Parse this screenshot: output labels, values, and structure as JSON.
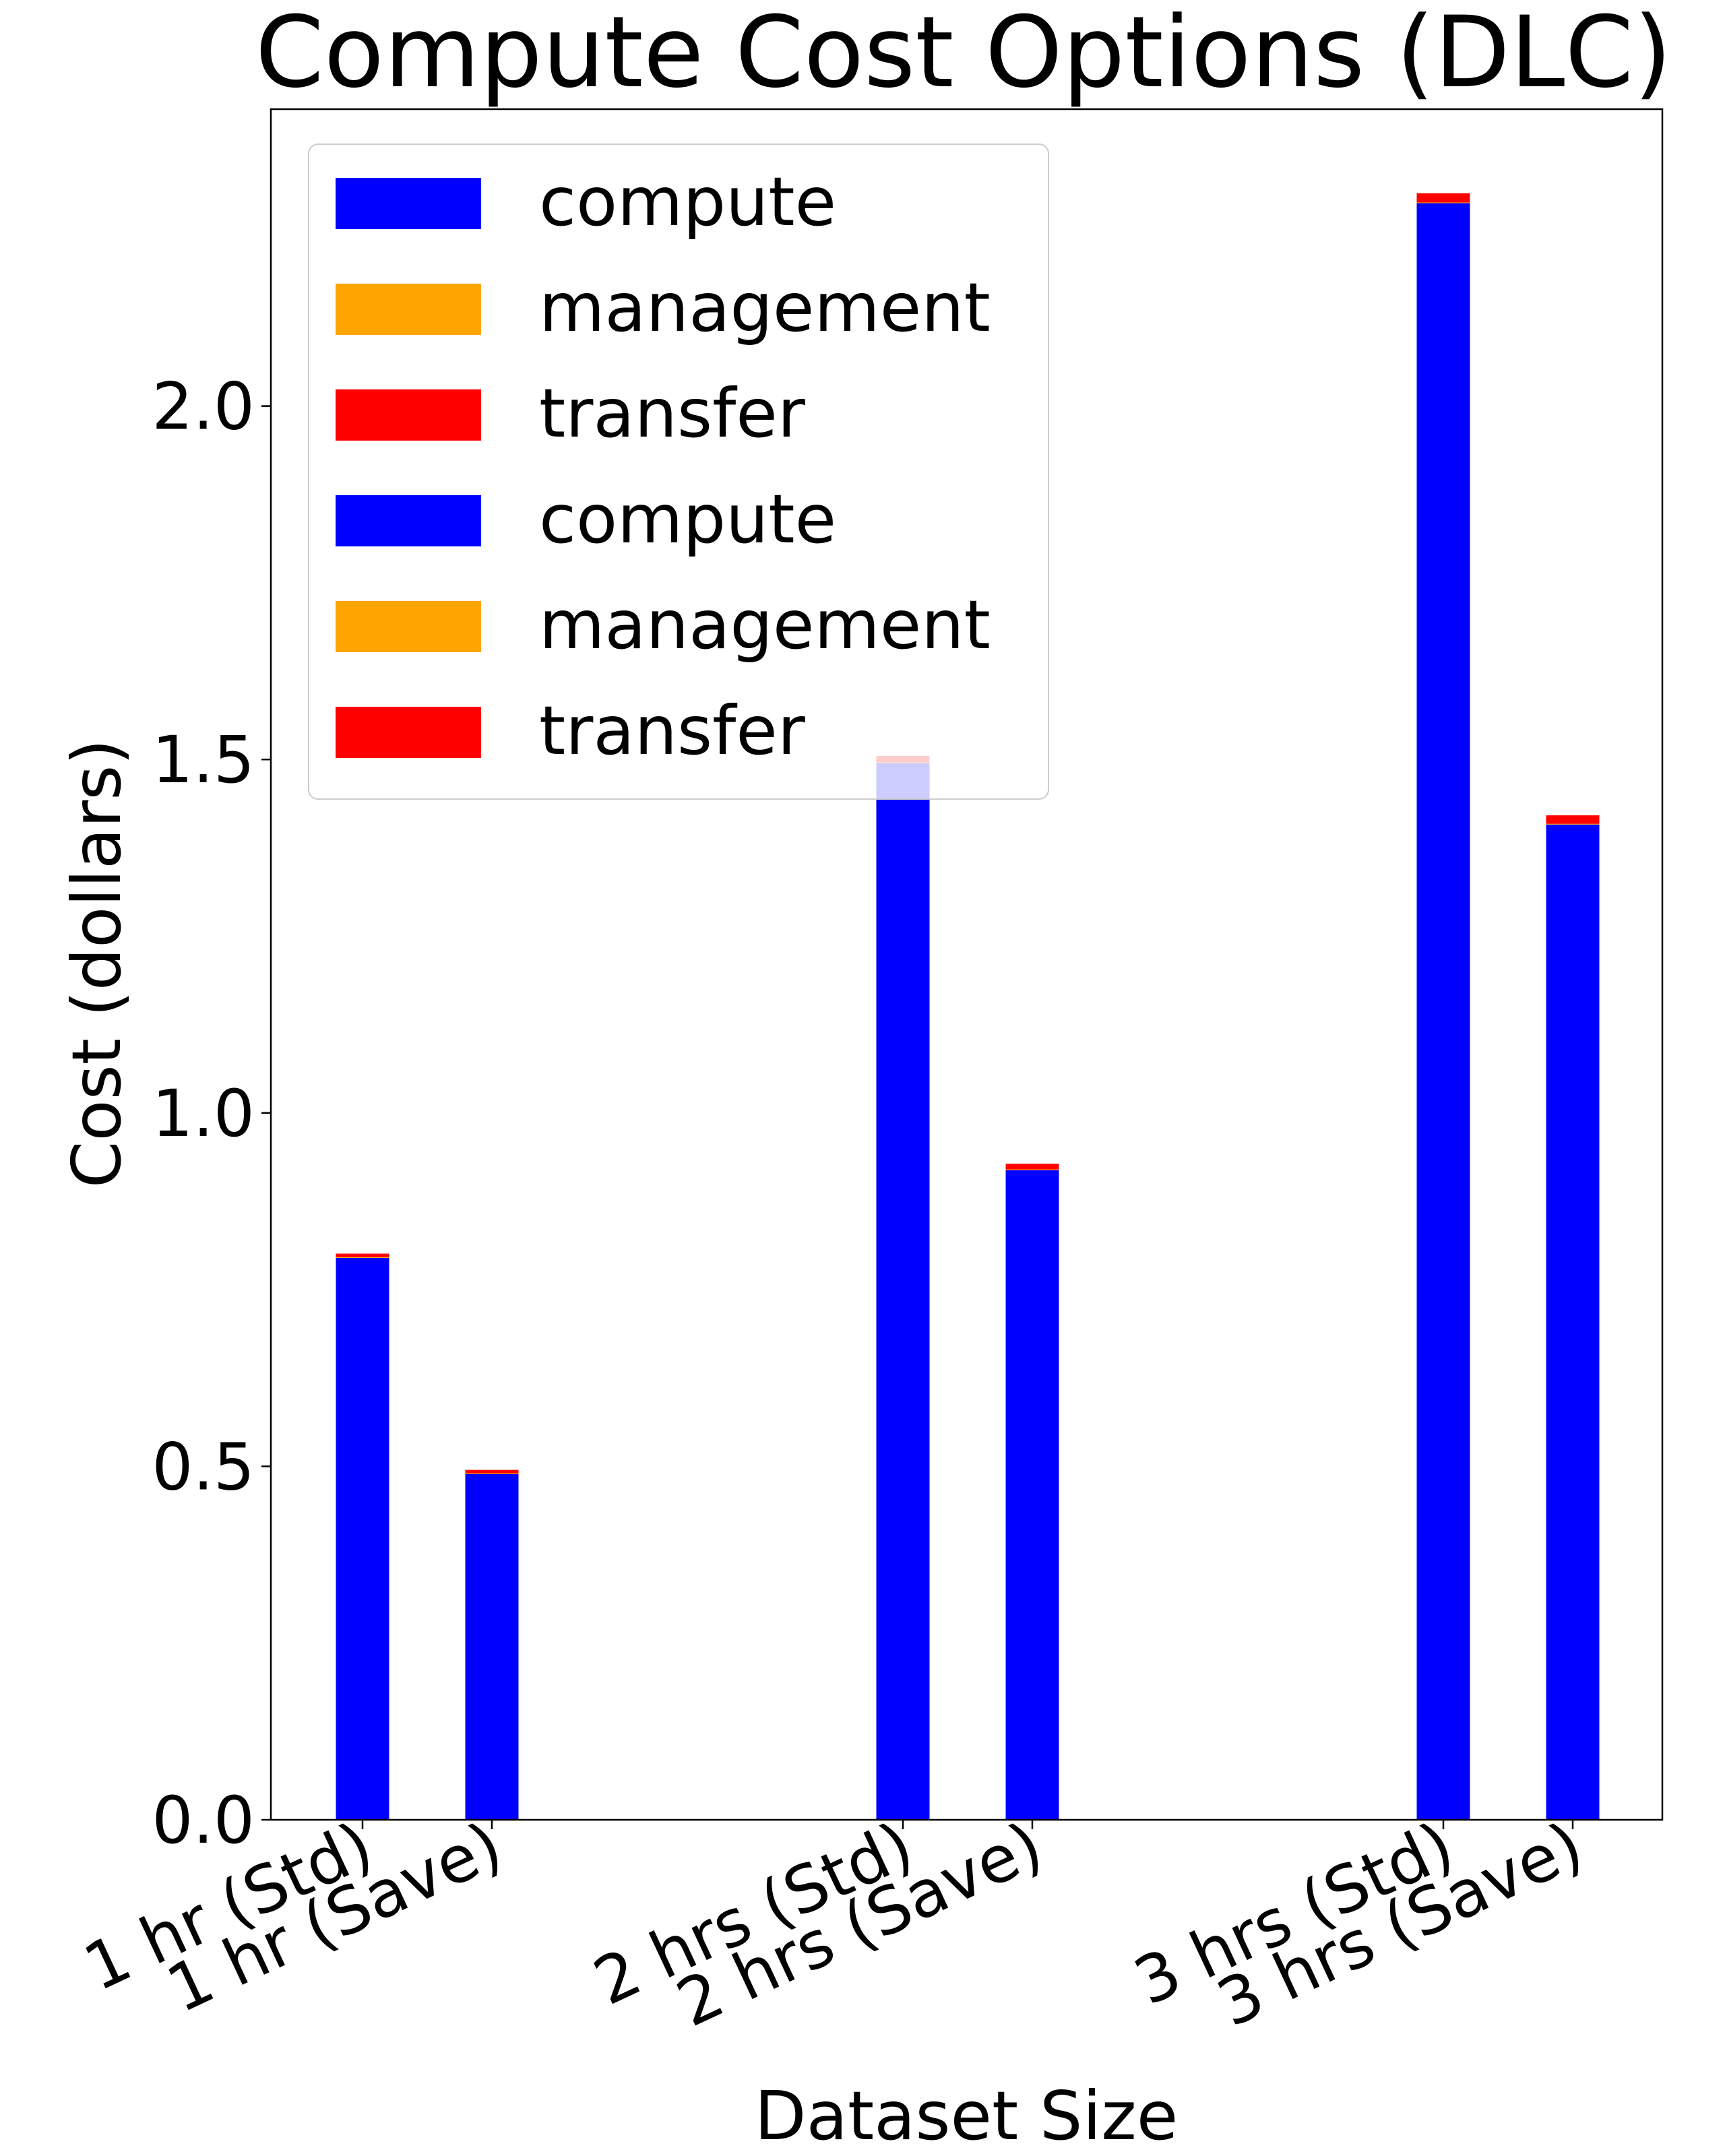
{
  "chart_data": {
    "type": "bar",
    "stacked": true,
    "title": "Compute Cost Options (DLC)",
    "xlabel": "Dataset Size",
    "ylabel": "Cost (dollars)",
    "ylim": [
      0,
      2.42
    ],
    "yticks": [
      0.0,
      0.5,
      1.0,
      1.5,
      2.0
    ],
    "ytick_labels": [
      "0.0",
      "0.5",
      "1.0",
      "1.5",
      "2.0"
    ],
    "grid": false,
    "legend_position": "top-left",
    "colors": {
      "compute": "#0000ff",
      "management": "#ffa500",
      "transfer": "#ff0000"
    },
    "legend": [
      "compute",
      "management",
      "transfer",
      "compute",
      "management",
      "transfer"
    ],
    "categories": [
      "1 hr (Std)",
      "1 hr (Save)",
      "2 hrs (Std)",
      "2 hrs (Save)",
      "3 hrs (Std)",
      "3 hrs (Save)"
    ],
    "series": [
      {
        "name": "compute",
        "values": [
          0.795,
          0.489,
          1.495,
          0.919,
          2.287,
          1.408
        ]
      },
      {
        "name": "management",
        "values": [
          0.001,
          0.001,
          0.001,
          0.001,
          0.001,
          0.001
        ]
      },
      {
        "name": "transfer",
        "values": [
          0.005,
          0.005,
          0.009,
          0.008,
          0.013,
          0.012
        ]
      }
    ]
  }
}
